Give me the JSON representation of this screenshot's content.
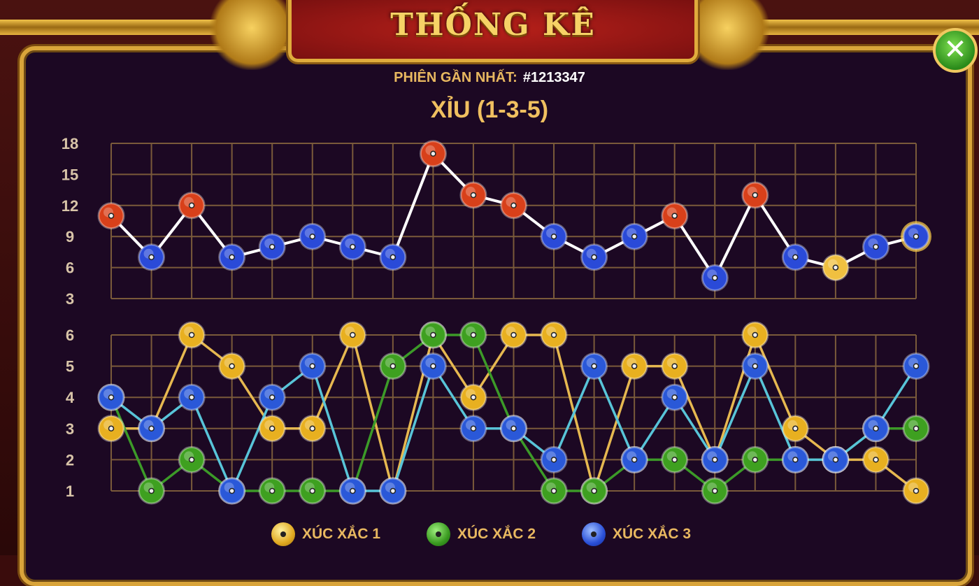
{
  "header": {
    "title": "THỐNG KÊ",
    "close_label": "✕"
  },
  "session": {
    "label": "PHIÊN GẦN NHẤT:",
    "number": "#1213347"
  },
  "result": {
    "text": "XỈU (1-3-5)"
  },
  "colors": {
    "tai": "#d8401a",
    "xiu": "#2a4ad8",
    "triple": "#f0c040",
    "dice1": "#e6b850",
    "dice2": "#3c9a28",
    "dice3": "#58c4d8",
    "sum_line": "#ffffff",
    "grid": "#7a5a3a"
  },
  "chart_data": [
    {
      "type": "line",
      "ylim": [
        3,
        18
      ],
      "yticks": [
        18,
        15,
        12,
        9,
        6,
        3
      ],
      "grid": true,
      "series": [
        {
          "values": [
            11,
            7,
            12,
            7,
            8,
            9,
            8,
            7,
            17,
            13,
            12,
            9,
            7,
            9,
            11,
            5,
            13,
            7,
            6,
            8,
            9
          ]
        }
      ],
      "point_kind": [
        "tai",
        "xiu",
        "tai",
        "xiu",
        "xiu",
        "xiu",
        "xiu",
        "xiu",
        "tai",
        "tai",
        "tai",
        "xiu",
        "xiu",
        "xiu",
        "tai",
        "xiu",
        "tai",
        "xiu",
        "triple",
        "xiu",
        "xiu"
      ],
      "highlight_last": true
    },
    {
      "type": "line",
      "ylim": [
        1,
        6
      ],
      "yticks": [
        6,
        5,
        4,
        3,
        2,
        1
      ],
      "grid": true,
      "legend": "bottom",
      "series": [
        {
          "name": "XÚC XẮC 1",
          "values": [
            3,
            3,
            6,
            5,
            3,
            3,
            6,
            1,
            6,
            4,
            6,
            6,
            1,
            5,
            5,
            2,
            6,
            3,
            2,
            2,
            1
          ]
        },
        {
          "name": "XÚC XẮC 2",
          "values": [
            4,
            1,
            2,
            1,
            1,
            1,
            1,
            5,
            6,
            6,
            3,
            1,
            1,
            2,
            2,
            1,
            2,
            2,
            2,
            3,
            3
          ]
        },
        {
          "name": "XÚC XẮC 3",
          "values": [
            4,
            3,
            4,
            1,
            4,
            5,
            1,
            1,
            5,
            3,
            3,
            2,
            5,
            2,
            4,
            2,
            5,
            2,
            2,
            3,
            5
          ]
        }
      ]
    }
  ]
}
